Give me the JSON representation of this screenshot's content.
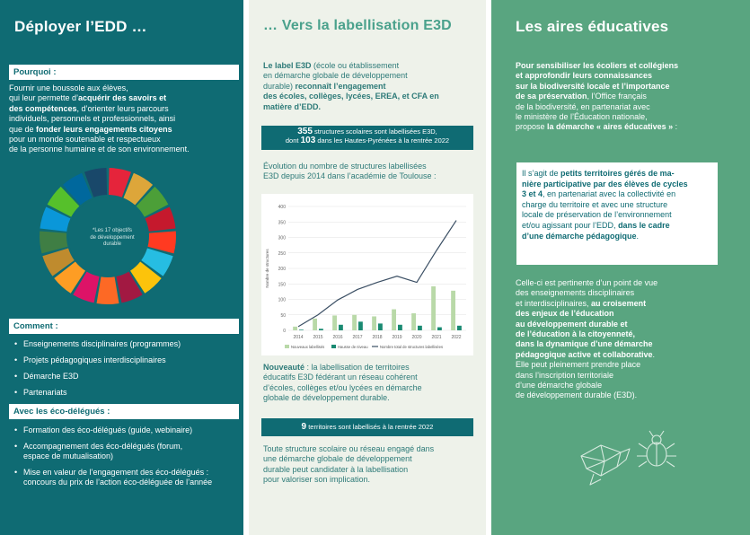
{
  "col1": {
    "title": "Déployer l’EDD …",
    "pourquoi_head": "Pourquoi :",
    "pourquoi_l1": "Fournir une boussole aux élèves,",
    "pourquoi_l2a": "qui leur permette d’",
    "pourquoi_l2b": "acquérir des savoirs et",
    "pourquoi_l3a": "des compétences",
    "pourquoi_l3b": ", d’orienter leurs parcours",
    "pourquoi_l4": "individuels, personnels et professionnels, ainsi",
    "pourquoi_l5a": "que de ",
    "pourquoi_l5b": "fonder leurs engagements citoyens",
    "pourquoi_l6": "pour un monde soutenable et respectueux",
    "pourquoi_l7": "de la personne humaine et de son environnement.",
    "wheel_caption_l1": "*Les 17 objectifs",
    "wheel_caption_l2": "de développement",
    "wheel_caption_l3": "durable",
    "comment_head": "Comment :",
    "comment_items": [
      "Enseignements disciplinaires (programmes)",
      "Projets pédagogiques interdisciplinaires",
      "Démarche E3D",
      "Partenariats"
    ],
    "eco_head": "Avec les éco-délégués :",
    "eco_items": [
      "Formation des éco-délégués (guide, webinaire)",
      "Accompagnement des éco-délégués (forum,",
      "espace de mutualisation)",
      "Mise en valeur de l’engagement des éco-délégués :",
      "concours du prix de l’action éco-déléguée de l’année"
    ]
  },
  "col2": {
    "title": "… Vers la labellisation E3D",
    "intro_l1a": "Le label E3D",
    "intro_l1b": " (école ou établissement",
    "intro_l2": "en démarche globale de développement",
    "intro_l3a": "durable) ",
    "intro_l3b": "reconnaît l’engagement",
    "intro_l4": "des écoles, collèges, lycées, EREA, et CFA en",
    "intro_l5": "matière d’EDD.",
    "band1_num": "355",
    "band1_text": " structures scolaires sont labellisées E3D,",
    "band1_l2a": "dont ",
    "band1_num2": "103",
    "band1_l2b": " dans les Hautes-Pyrénées à la rentrée 2022",
    "evol_l1": "Évolution du nombre de structures labellisées",
    "evol_l2": "E3D depuis 2014 dans l’académie de Toulouse :",
    "nouv_l1a": "Nouveauté",
    "nouv_l1b": " : la labellisation de territoires",
    "nouv_l2": "éducatifs E3D fédérant un réseau cohérent",
    "nouv_l3": "d’écoles, collèges et/ou lycées en démarche",
    "nouv_l4": "globale de développement durable.",
    "band2_num": "9",
    "band2_text": " territoires sont labellisés à la rentrée 2022",
    "final_l1": "Toute structure scolaire ou réseau engagé dans",
    "final_l2": "une démarche globale de développement",
    "final_l3": "durable peut candidater à la labellisation",
    "final_l4": "pour valoriser son implication."
  },
  "chart_data": {
    "type": "bar",
    "categories": [
      "2014",
      "2015",
      "2016",
      "2017",
      "2018",
      "2019",
      "2020",
      "2021",
      "2022"
    ],
    "ylabel": "Nombre de structures",
    "ylim": [
      0,
      400
    ],
    "yticks": [
      "0",
      "50",
      "100",
      "150",
      "200",
      "250",
      "300",
      "350",
      "400"
    ],
    "series": [
      {
        "name": "Nouveaux labellisés",
        "kind": "bar",
        "color": "#b9d9a8",
        "values": [
          12,
          38,
          48,
          50,
          45,
          68,
          55,
          142,
          128
        ]
      },
      {
        "name": "Hausse de niveau",
        "kind": "bar",
        "color": "#1a8a72",
        "values": [
          2,
          5,
          18,
          28,
          22,
          18,
          15,
          10,
          15
        ]
      },
      {
        "name": "Nombre total de structures labellisées",
        "kind": "line",
        "color": "#3b4f64",
        "values": [
          12,
          50,
          98,
          132,
          155,
          175,
          155,
          258,
          355
        ]
      }
    ]
  },
  "col3": {
    "title": "Les aires éducatives",
    "intro_l1": "Pour sensibiliser les écoliers et collégiens",
    "intro_l2": "et approfondir leurs connaissances",
    "intro_l3": "sur la biodiversité locale et l’importance",
    "intro_l4a": "de sa préservation",
    "intro_l4b": ", l’Office français",
    "intro_l5": "de la biodiversité, en partenariat avec",
    "intro_l6": "le ministère de l’Éducation nationale,",
    "intro_l7a": "propose ",
    "intro_l7b": "la démarche « aires éducatives »",
    "intro_l7c": " :",
    "box_l1a": "Il s’agit de ",
    "box_l1b": "petits territoires gérés de ma-",
    "box_l2": "nière participative par des élèves de cycles",
    "box_l3a": "3 et 4",
    "box_l3b": ", en partenariat avec la collectivité en",
    "box_l4": "charge du territoire et avec une structure",
    "box_l5": "locale de préservation de l’environnement",
    "box_l6a": "et/ou agissant pour l’EDD, ",
    "box_l6b": "dans le cadre",
    "box_l7": "d’une démarche pédagogique",
    "box_l7c": ".",
    "p2_l1": "Celle-ci est pertinente d’un point de vue",
    "p2_l2": "des enseignements disciplinaires",
    "p2_l3a": "et interdisciplinaires, ",
    "p2_l3b": "au croisement",
    "p2_l4": "des enjeux de l’éducation",
    "p2_l5": "au développement durable et",
    "p2_l6": "de l’éducation à la citoyenneté,",
    "p2_l7": "dans la dynamique d’une démarche",
    "p2_l8a": "pédagogique active et collaborative",
    "p2_l8b": ".",
    "p2_l9": "Elle peut pleinement prendre place",
    "p2_l10": "dans l’inscription territoriale",
    "p2_l11": "d’une démarche globale",
    "p2_l12": "de développement durable (E3D)."
  },
  "colors": {
    "teal_dark": "#0f6b73",
    "green_mid": "#59a580",
    "light_bg": "#eef2ea",
    "title_green": "#4aa18c"
  }
}
